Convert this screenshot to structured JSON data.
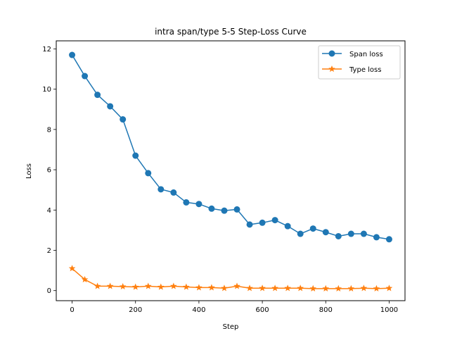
{
  "chart_data": {
    "type": "line",
    "title": "intra span/type 5-5 Step-Loss Curve",
    "xlabel": "Step",
    "ylabel": "Loss",
    "xlim": [
      -50,
      1050
    ],
    "ylim": [
      -0.5,
      12.4
    ],
    "xticks": [
      0,
      200,
      400,
      600,
      800,
      1000
    ],
    "yticks": [
      0,
      2,
      4,
      6,
      8,
      10,
      12
    ],
    "x": [
      0,
      40,
      80,
      120,
      160,
      200,
      240,
      280,
      320,
      360,
      400,
      440,
      480,
      520,
      560,
      600,
      640,
      680,
      720,
      760,
      800,
      840,
      880,
      920,
      960,
      1000
    ],
    "series": [
      {
        "name": "Span loss",
        "color": "#1f77b4",
        "marker": "circle",
        "values": [
          11.7,
          10.65,
          9.72,
          9.15,
          8.5,
          6.7,
          5.83,
          5.03,
          4.87,
          4.38,
          4.3,
          4.07,
          3.97,
          4.03,
          3.28,
          3.37,
          3.5,
          3.2,
          2.82,
          3.08,
          2.9,
          2.7,
          2.82,
          2.82,
          2.65,
          2.55
        ]
      },
      {
        "name": "Type loss",
        "color": "#ff7f0e",
        "marker": "star",
        "values": [
          1.1,
          0.55,
          0.22,
          0.22,
          0.2,
          0.18,
          0.22,
          0.18,
          0.22,
          0.18,
          0.15,
          0.15,
          0.12,
          0.22,
          0.12,
          0.12,
          0.12,
          0.12,
          0.12,
          0.1,
          0.1,
          0.1,
          0.1,
          0.12,
          0.1,
          0.12
        ]
      }
    ],
    "legend": "top-right",
    "grid": false
  }
}
